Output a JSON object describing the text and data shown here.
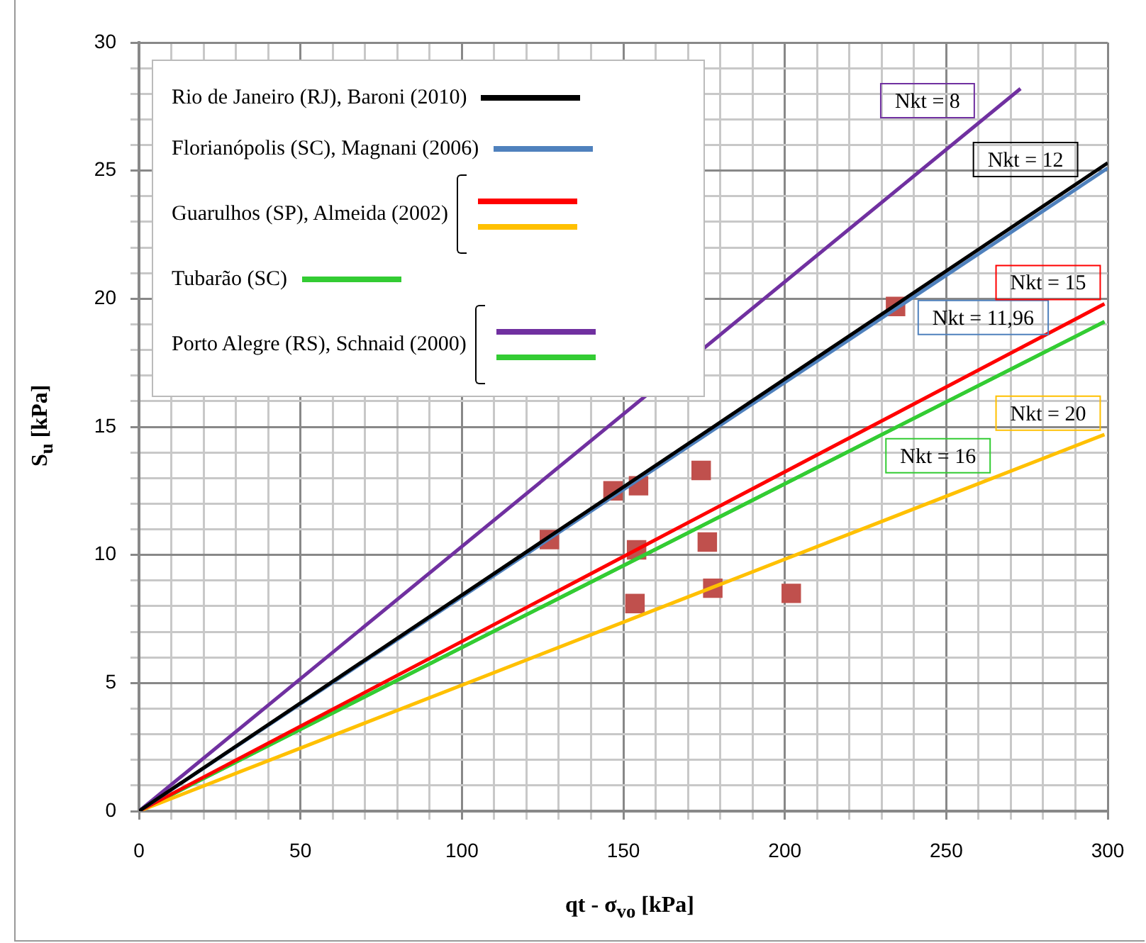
{
  "chart_data": {
    "type": "line",
    "xlabel": "qt - σ$_{vo}$ [kPa]",
    "ylabel": "S$_{u}$ [kPa]",
    "xlim": [
      0,
      300
    ],
    "ylim": [
      0,
      30
    ],
    "xticks": [
      0,
      {
        "value": 10,
        "label": null
      },
      {
        "value": 20,
        "label": null
      },
      {
        "value": 30,
        "label": null
      },
      {
        "value": 40,
        "label": null
      },
      50,
      {
        "value": 60,
        "label": null
      },
      {
        "value": 70,
        "label": null
      },
      {
        "value": 80,
        "label": null
      },
      {
        "value": 90,
        "label": null
      },
      100,
      {
        "value": 110,
        "label": null
      },
      {
        "value": 120,
        "label": null
      },
      {
        "value": 130,
        "label": null
      },
      {
        "value": 140,
        "label": null
      },
      150,
      {
        "value": 160,
        "label": null
      },
      {
        "value": 170,
        "label": null
      },
      {
        "value": 180,
        "label": null
      },
      {
        "value": 190,
        "label": null
      },
      200,
      {
        "value": 210,
        "label": null
      },
      {
        "value": 220,
        "label": null
      },
      {
        "value": 230,
        "label": null
      },
      {
        "value": 240,
        "label": null
      },
      250,
      {
        "value": 260,
        "label": null
      },
      {
        "value": 270,
        "label": null
      },
      {
        "value": 280,
        "label": null
      },
      {
        "value": 290,
        "label": null
      },
      300
    ],
    "yticks": [
      0,
      {
        "value": 1,
        "label": null
      },
      {
        "value": 2,
        "label": null
      },
      {
        "value": 3,
        "label": null
      },
      {
        "value": 4,
        "label": null
      },
      5,
      {
        "value": 6,
        "label": null
      },
      {
        "value": 7,
        "label": null
      },
      {
        "value": 8,
        "label": null
      },
      {
        "value": 9,
        "label": null
      },
      10,
      {
        "value": 11,
        "label": null
      },
      {
        "value": 12,
        "label": null
      },
      {
        "value": 13,
        "label": null
      },
      {
        "value": 14,
        "label": null
      },
      15,
      {
        "value": 16,
        "label": null
      },
      {
        "value": 17,
        "label": null
      },
      {
        "value": 18,
        "label": null
      },
      {
        "value": 19,
        "label": null
      },
      20,
      {
        "value": 21,
        "label": null
      },
      {
        "value": 22,
        "label": null
      },
      {
        "value": 23,
        "label": null
      },
      {
        "value": 24,
        "label": null
      },
      25,
      {
        "value": 26,
        "label": null
      },
      {
        "value": 27,
        "label": null
      },
      {
        "value": 28,
        "label": null
      },
      {
        "value": 29,
        "label": null
      },
      30
    ],
    "grid": true,
    "legend": "top left",
    "marker": "none",
    "series": [
      {
        "name": "Rio de Janeiro (RJ), Baroni (2010)",
        "color": "#000000",
        "x": [
          0,
          300
        ],
        "values": [
          0,
          25.3
        ]
      },
      {
        "name": "Florianópolis (SC), Magnani (2006)",
        "color": "#4f81bd",
        "x": [
          0,
          300
        ],
        "values": [
          0,
          25.1
        ]
      },
      {
        "name": "Guarulhos (SP), Almeida (2002)",
        "color": "#ff0000",
        "x": [
          0,
          299
        ],
        "values": [
          0,
          19.8
        ]
      },
      {
        "color": "#ffc000",
        "x": [
          0,
          299
        ],
        "values": [
          0,
          14.7
        ]
      },
      {
        "name": "Tubarão (SC)",
        "color": "#33cc33",
        "x": [
          0,
          299
        ],
        "values": [
          0,
          19.1
        ]
      },
      {
        "name": "Porto Alegre (RS), Schnaid  (2000)",
        "color": "#7030a0",
        "x": [
          0,
          273
        ],
        "values": [
          0,
          28.2
        ]
      },
      {
        "color": "#33cc33",
        "x": [
          0,
          299
        ],
        "values": [
          0,
          19.1
        ]
      },
      {
        "type": "scatter",
        "marker": "square",
        "color": "#c0504d",
        "x": [
          127.1,
          146.8,
          154.7,
          174.1,
          154.1,
          176,
          153.6,
          177.7,
          202,
          234.3
        ],
        "values": [
          10.6,
          12.5,
          12.7,
          13.3,
          10.2,
          10.5,
          8.1,
          8.7,
          8.5,
          19.7
        ]
      }
    ],
    "annotations": [
      {
        "text": "Nkt = 8",
        "x": 260,
        "y": 26.9
      },
      {
        "text": "Nkt = 12",
        "x": 292,
        "y": 24.6
      },
      {
        "text": "Nkt = 11,96",
        "x": 240,
        "y": 20.1
      },
      {
        "text": "Nkt = 15",
        "x": 299,
        "y": 19.8
      },
      {
        "text": "Nkt = 16",
        "x": 230,
        "y": 14.7
      },
      {
        "text": "Nkt = 20",
        "x": 299,
        "y": 14.7
      }
    ]
  }
}
